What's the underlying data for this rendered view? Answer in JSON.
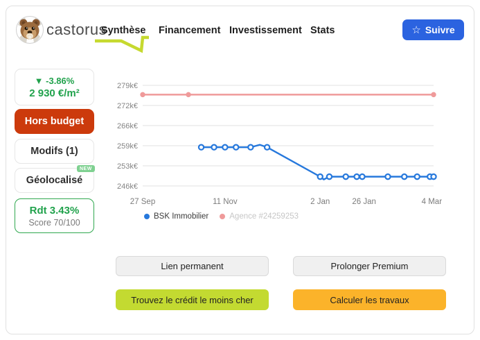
{
  "brand": {
    "name": "castorus"
  },
  "nav": {
    "items": [
      {
        "label": "Synthèse",
        "active": true
      },
      {
        "label": "Financement",
        "active": false
      },
      {
        "label": "Investissement",
        "active": false
      },
      {
        "label": "Stats",
        "active": false
      }
    ]
  },
  "follow_button": {
    "label": "Suivre",
    "icon_glyph": "☆",
    "bg": "#2b63e0"
  },
  "sidebar": {
    "price_change": {
      "line1": "▼  -3.86%",
      "line2": "2 930 €/m²",
      "color": "#21a24c"
    },
    "hors_budget": {
      "label": "Hors budget",
      "bg": "#cc3a0c"
    },
    "modifs": {
      "label": "Modifs (1)"
    },
    "geolocalise": {
      "label": "Géolocalisé",
      "badge": "NEW",
      "badge_bg": "#7fd191"
    },
    "rendement": {
      "line1": "Rdt 3.43%",
      "line2": "Score 70/100",
      "border": "#2fa84f"
    }
  },
  "chart_data": {
    "type": "line",
    "grid": true,
    "legend_position": "bottom",
    "y_ticks": [
      {
        "label": "279k€",
        "value": 279000
      },
      {
        "label": "272k€",
        "value": 272500
      },
      {
        "label": "266k€",
        "value": 266000
      },
      {
        "label": "259k€",
        "value": 259500
      },
      {
        "label": "253k€",
        "value": 253000
      },
      {
        "label": "246k€",
        "value": 246500
      }
    ],
    "x_ticks": [
      {
        "label": "27 Sep",
        "day": 0
      },
      {
        "label": "11 Nov",
        "day": 45
      },
      {
        "label": "2 Jan",
        "day": 97
      },
      {
        "label": "26 Jan",
        "day": 121
      },
      {
        "label": "4 Mar",
        "day": 158
      }
    ],
    "x_range_days": [
      0,
      159
    ],
    "series": [
      {
        "name": "BSK Immobilier",
        "color": "#2678dc",
        "label_color": "#3a3a3a",
        "marker_style": "open-circle",
        "points": [
          {
            "day": 32,
            "value": 259000
          },
          {
            "day": 39,
            "value": 259000
          },
          {
            "day": 45,
            "value": 259000
          },
          {
            "day": 51,
            "value": 259000
          },
          {
            "day": 59,
            "value": 259000
          },
          {
            "day": 64,
            "value": 259800,
            "marker": false
          },
          {
            "day": 68,
            "value": 259000
          },
          {
            "day": 97,
            "value": 249500
          },
          {
            "day": 99,
            "value": 248600,
            "marker": false
          },
          {
            "day": 102,
            "value": 249500
          },
          {
            "day": 111,
            "value": 249500
          },
          {
            "day": 117,
            "value": 249500
          },
          {
            "day": 120,
            "value": 249500
          },
          {
            "day": 134,
            "value": 249500
          },
          {
            "day": 143,
            "value": 249500
          },
          {
            "day": 150,
            "value": 249500
          },
          {
            "day": 157,
            "value": 249500
          },
          {
            "day": 159,
            "value": 249500
          }
        ]
      },
      {
        "name": "Agence #24259253",
        "color": "#ef9a9a",
        "label_color": "#c6c6c6",
        "marker_style": "filled-circle",
        "points": [
          {
            "day": 0,
            "value": 276000
          },
          {
            "day": 25,
            "value": 276000
          },
          {
            "day": 159,
            "value": 276000
          }
        ]
      }
    ]
  },
  "footer_buttons": {
    "lien": {
      "label": "Lien permanent"
    },
    "prolonger": {
      "label": "Prolonger Premium"
    },
    "credit": {
      "label": "Trouvez le crédit le moins cher",
      "bg": "#c3da31"
    },
    "travaux": {
      "label": "Calculer les travaux",
      "bg": "#fbb32a"
    }
  }
}
